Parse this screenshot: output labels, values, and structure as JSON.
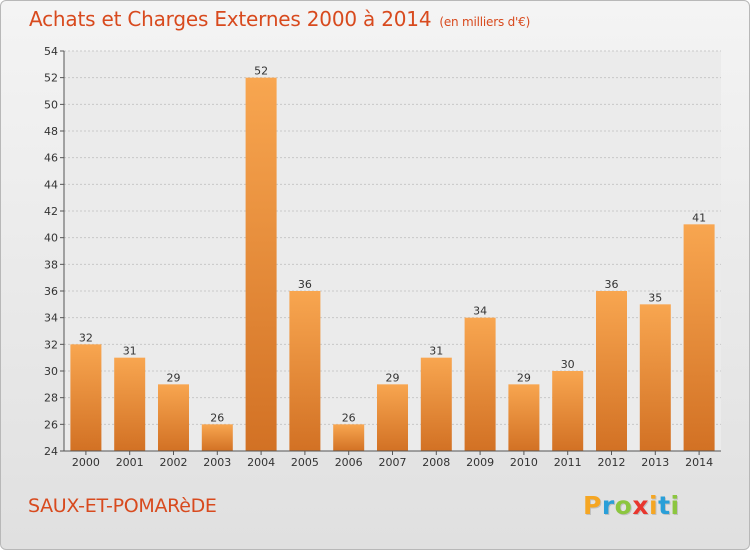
{
  "title": {
    "main": "Achats et Charges Externes 2000 à 2014",
    "unit": "(en milliers d'€)"
  },
  "commune": "SAUX-ET-POMARèDE",
  "logo": {
    "letters": [
      "P",
      "r",
      "o",
      "x",
      "i",
      "t",
      "i"
    ],
    "colors": [
      "#f5a623",
      "#2a9fd8",
      "#8cc63f",
      "#e8362e",
      "#f5a623",
      "#2a9fd8",
      "#8cc63f"
    ]
  },
  "colors": {
    "title": "#d84a1e",
    "bar_light": "#f8a650",
    "bar_dark": "#d27124",
    "axis": "#555555",
    "grid": "#c8c8c8"
  },
  "chart_data": {
    "type": "bar",
    "title": "Achats et Charges Externes 2000 à 2014",
    "subtitle": "(en milliers d'€)",
    "xlabel": "",
    "ylabel": "",
    "categories": [
      "2000",
      "2001",
      "2002",
      "2003",
      "2004",
      "2005",
      "2006",
      "2007",
      "2008",
      "2009",
      "2010",
      "2011",
      "2012",
      "2013",
      "2014"
    ],
    "values": [
      32,
      31,
      29,
      26,
      52,
      36,
      26,
      29,
      31,
      34,
      29,
      30,
      36,
      35,
      41
    ],
    "ylim": [
      24,
      54
    ],
    "yticks": [
      24,
      26,
      28,
      30,
      32,
      34,
      36,
      38,
      40,
      42,
      44,
      46,
      48,
      50,
      52,
      54
    ],
    "grid": true,
    "legend": "none"
  }
}
